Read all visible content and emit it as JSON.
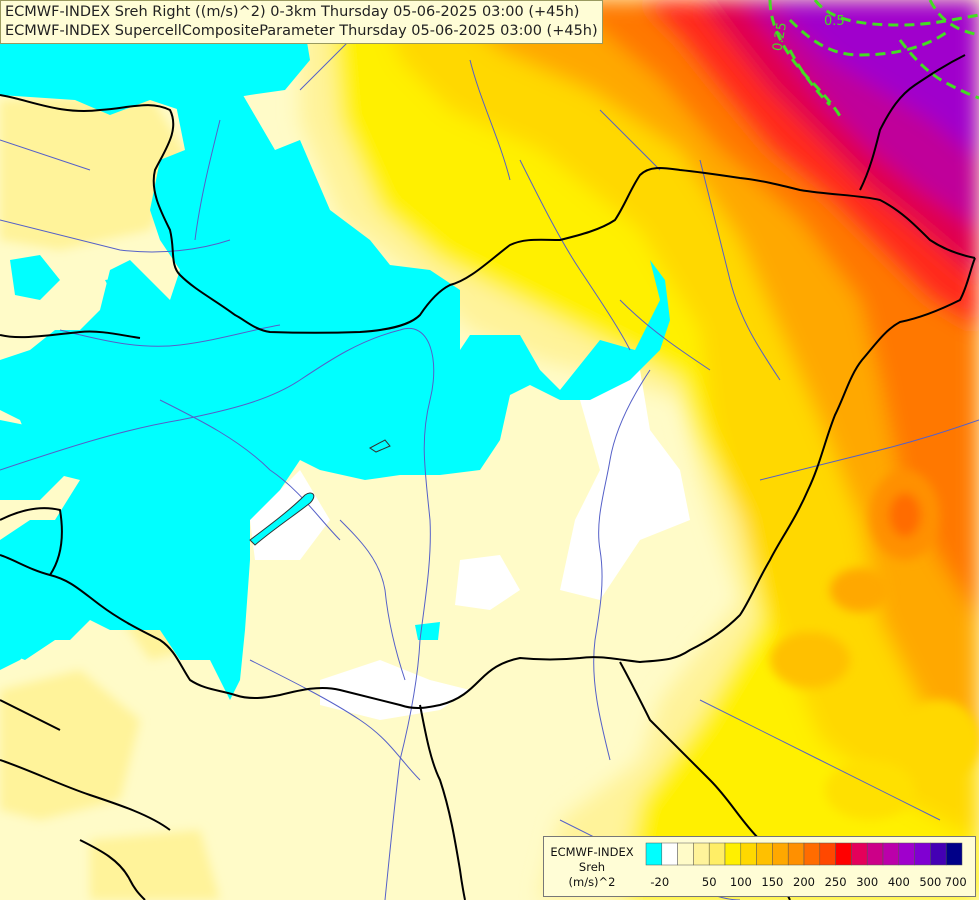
{
  "titles": [
    "ECMWF-INDEX Sreh Right ((m/s)^2) 0-3km Thursday 05-06-2025 03:00 (+45h)",
    "ECMWF-INDEX SupercellCompositeParameter Thursday 05-06-2025 03:00 (+45h)"
  ],
  "legend": {
    "caption_lines": [
      "ECMWF-INDEX",
      "Sreh",
      "(m/s)^2"
    ],
    "colors": [
      "#00ffff",
      "#ffffff",
      "#fffbc8",
      "#fff39a",
      "#ffee66",
      "#fff000",
      "#ffd800",
      "#ffc000",
      "#ffa800",
      "#ff9000",
      "#ff6c00",
      "#ff4800",
      "#ff0000",
      "#e4005a",
      "#cc0088",
      "#bb00aa",
      "#a000cc",
      "#8000d2",
      "#4400b4",
      "#000088"
    ],
    "tick_labels": [
      "-20",
      "50",
      "100",
      "150",
      "200",
      "250",
      "300",
      "400",
      "500",
      "700"
    ]
  },
  "contour_labels": [
    "0.5",
    "0.25"
  ],
  "colors": {
    "cyan": "#00ffff",
    "white": "#ffffff",
    "pale_yellow": "#fffbc8",
    "light_yellow": "#fff39a",
    "yellow": "#fff000",
    "gold": "#ffc800",
    "orange": "#ffa000",
    "dark_orange": "#ff6c00",
    "red": "#ff1e1e",
    "crimson": "#e00050",
    "magenta": "#c0009a",
    "purple": "#a000cc",
    "contour": "#44dd22",
    "border": "#000000",
    "river": "#5560c8"
  }
}
